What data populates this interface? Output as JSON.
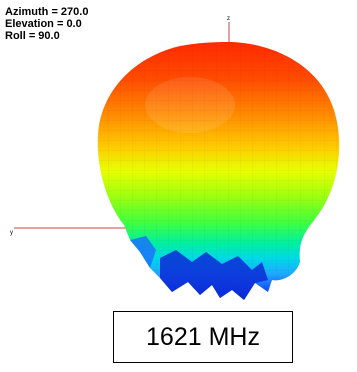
{
  "view": {
    "azimuth": "Azimuth = 270.0",
    "elevation": "Elevation = 0.0",
    "roll": "Roll = 90.0"
  },
  "axes": {
    "z_label": "z",
    "y_label": "y",
    "axis_color": "#cc4444"
  },
  "frequency_label": "1621 MHz",
  "pattern": {
    "type": "3D radiation pattern",
    "colormap": [
      "#ff2a00",
      "#ff7a00",
      "#ffd000",
      "#c8ff00",
      "#5cff30",
      "#00f0a0",
      "#00c8ff",
      "#1a6bff",
      "#0a2bd6"
    ]
  }
}
